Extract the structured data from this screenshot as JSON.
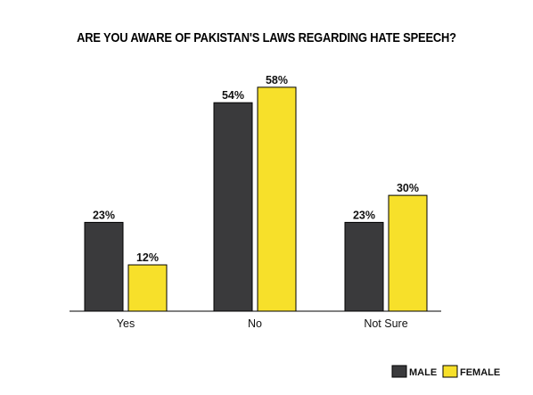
{
  "chart_data": {
    "type": "bar",
    "title": "ARE YOU AWARE OF PAKISTAN'S LAWS REGARDING HATE SPEECH?",
    "categories": [
      "Yes",
      "No",
      "Not Sure"
    ],
    "series": [
      {
        "name": "MALE",
        "values": [
          23,
          54,
          23
        ],
        "labels": [
          "23%",
          "54%",
          "23%"
        ],
        "color": "#3a3a3c"
      },
      {
        "name": "FEMALE",
        "values": [
          12,
          58,
          30
        ],
        "labels": [
          "12%",
          "58%",
          "30%"
        ],
        "color": "#f7e02a"
      }
    ],
    "unit": "%",
    "xlabel": "",
    "ylabel": "",
    "ylim": [
      0,
      60
    ],
    "grid": false,
    "legend_position": "bottom-right"
  }
}
